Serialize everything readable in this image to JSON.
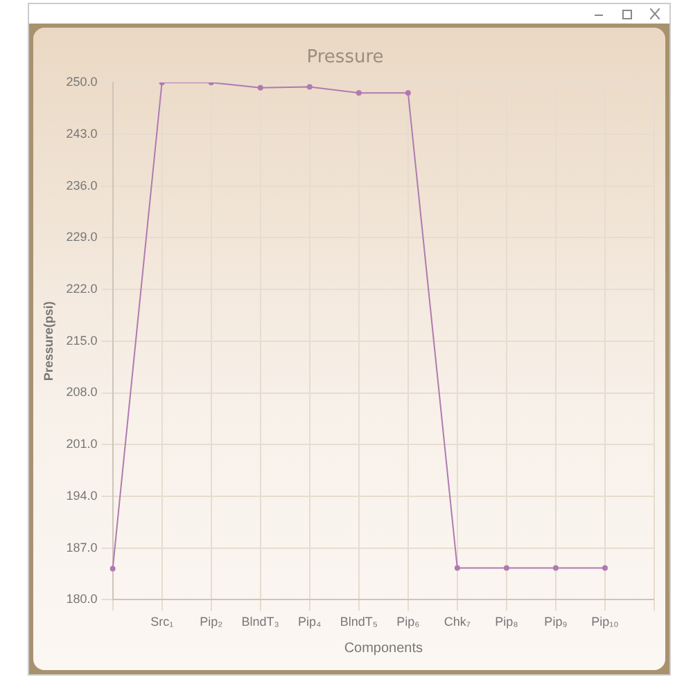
{
  "chart_data": {
    "type": "line",
    "title": "Pressure",
    "xlabel": "Components",
    "ylabel": "Pressure(psi)",
    "categories": [
      null,
      "Src₁",
      "Pip₂",
      "BlndT₃",
      "Pip₄",
      "BlndT₅",
      "Pip₆",
      "Chk₇",
      "Pip₈",
      "Pip₉",
      "Pip₁₀",
      null
    ],
    "series": [
      {
        "color": "#b07ab0",
        "values": [
          184.2,
          250,
          250,
          249.3,
          249.4,
          248.6,
          248.6,
          184.3,
          184.3,
          184.3,
          184.3,
          null
        ]
      }
    ],
    "ylim": [
      180,
      250
    ],
    "yticks": [
      {
        "value": 180,
        "label": "180.0"
      },
      {
        "value": 187,
        "label": "187.0"
      },
      {
        "value": 194,
        "label": "194.0"
      },
      {
        "value": 201,
        "label": "201.0"
      },
      {
        "value": 208,
        "label": "208.0"
      },
      {
        "value": 215,
        "label": "215.0"
      },
      {
        "value": 222,
        "label": "222.0"
      },
      {
        "value": 229,
        "label": "229.0"
      },
      {
        "value": 236,
        "label": "236.0"
      },
      {
        "value": 243,
        "label": "243.0"
      },
      {
        "value": 250,
        "label": "250.0"
      }
    ],
    "grid": true,
    "marker": "circle",
    "line_style": "solid"
  }
}
